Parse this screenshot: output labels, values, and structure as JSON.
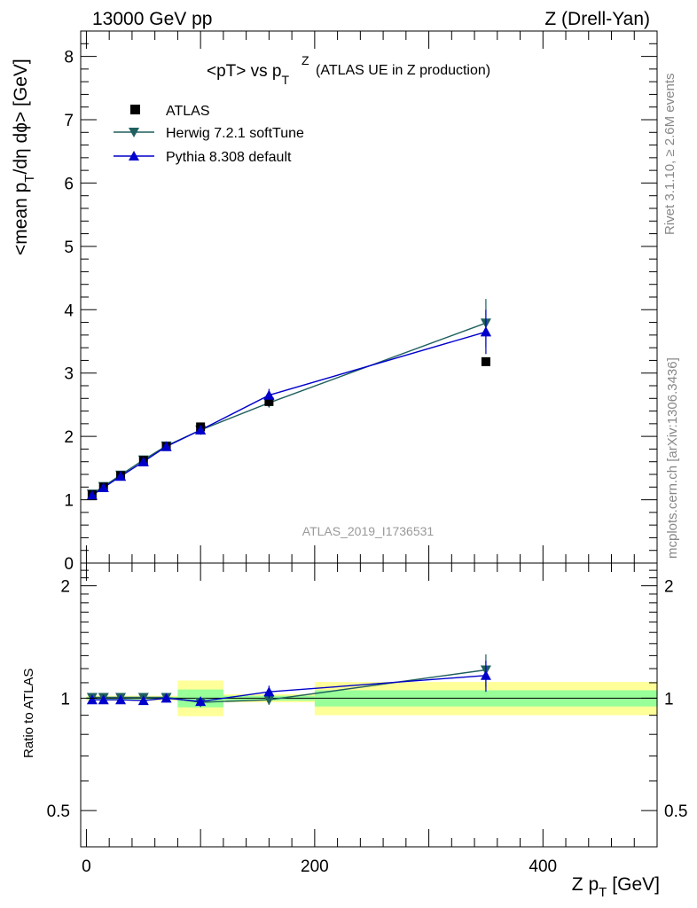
{
  "header": {
    "left": "13000 GeV pp",
    "right": "Z (Drell-Yan)"
  },
  "side_labels": {
    "rivet": "Rivet 3.1.10, ≥ 2.6M events",
    "mcplots": "mcplots.cern.ch [arXiv:1306.3436]"
  },
  "watermark": "ATLAS_2019_I1736531",
  "colors": {
    "atlas": "#000000",
    "herwig": "#1f5f5f",
    "pythia": "#0000cc",
    "band_inner": "#99ff99",
    "band_outer": "#ffff99"
  },
  "chart_data": [
    {
      "type": "scatter",
      "title_main": "<pT> vs p",
      "title_sup": "Z",
      "title_sub": "T",
      "title_suffix": "(ATLAS UE in Z production)",
      "ylabel_main": "<mean p",
      "ylabel_sub": "T",
      "ylabel_rest": "/dη dϕ> [GeV]",
      "xlim": [
        -5,
        500
      ],
      "ylim": [
        0,
        8.4
      ],
      "yticks": [
        1,
        2,
        3,
        4,
        5,
        6,
        7,
        8
      ],
      "ytick_labels": [
        "1",
        "2",
        "3",
        "4",
        "5",
        "6",
        "7",
        "8"
      ],
      "ytick_zero_label": "0",
      "legend_position": "top-left",
      "series": [
        {
          "name": "ATLAS",
          "marker": "square",
          "x": [
            5,
            15,
            30,
            50,
            70,
            100,
            160,
            350
          ],
          "y": [
            1.08,
            1.2,
            1.38,
            1.62,
            1.84,
            2.15,
            2.55,
            3.18
          ]
        },
        {
          "name": "Herwig 7.2.1 softTune",
          "marker": "triangle-down",
          "x": [
            5,
            15,
            30,
            50,
            70,
            100,
            160,
            350
          ],
          "y": [
            1.09,
            1.21,
            1.39,
            1.63,
            1.85,
            2.1,
            2.53,
            3.79
          ],
          "yerr": [
            0.01,
            0.01,
            0.01,
            0.02,
            0.02,
            0.03,
            0.07,
            0.38
          ]
        },
        {
          "name": "Pythia 8.308 default",
          "marker": "triangle-up",
          "x": [
            5,
            15,
            30,
            50,
            70,
            100,
            160,
            350
          ],
          "y": [
            1.07,
            1.19,
            1.37,
            1.6,
            1.84,
            2.1,
            2.65,
            3.65
          ],
          "yerr": [
            0.01,
            0.01,
            0.01,
            0.02,
            0.02,
            0.03,
            0.1,
            0.35
          ]
        }
      ]
    },
    {
      "type": "scatter",
      "ylabel": "Ratio to ATLAS",
      "xlabel_main": "Z p",
      "xlabel_sub": "T",
      "xlabel_rest": "[GeV]",
      "xlim": [
        -5,
        500
      ],
      "ylim": [
        0.4,
        2.3
      ],
      "yscale": "log",
      "yticks": [
        0.5,
        1,
        2
      ],
      "ytick_labels": [
        "0.5",
        "1",
        "2"
      ],
      "xticks": [
        0,
        200,
        400
      ],
      "xtick_labels": [
        "0",
        "200",
        "400"
      ],
      "bands": [
        {
          "x0": 0,
          "x1": 80,
          "inner": [
            0.992,
            1.008
          ],
          "outer": [
            0.985,
            1.015
          ]
        },
        {
          "x0": 80,
          "x1": 120,
          "inner": [
            0.945,
            1.055
          ],
          "outer": [
            0.895,
            1.115
          ]
        },
        {
          "x0": 120,
          "x1": 200,
          "inner": [
            0.985,
            1.015
          ],
          "outer": [
            0.975,
            1.025
          ]
        },
        {
          "x0": 200,
          "x1": 500,
          "inner": [
            0.95,
            1.05
          ],
          "outer": [
            0.9,
            1.105
          ]
        }
      ],
      "series": [
        {
          "name": "Herwig 7.2.1 softTune",
          "marker": "triangle-down",
          "x": [
            5,
            15,
            30,
            50,
            70,
            100,
            160,
            350
          ],
          "y": [
            1.005,
            1.005,
            1.005,
            1.005,
            1.005,
            0.975,
            0.99,
            1.19
          ],
          "yerr": [
            0.005,
            0.005,
            0.005,
            0.01,
            0.01,
            0.015,
            0.03,
            0.12
          ]
        },
        {
          "name": "Pythia 8.308 default",
          "marker": "triangle-up",
          "x": [
            5,
            15,
            30,
            50,
            70,
            100,
            160,
            350
          ],
          "y": [
            0.99,
            0.99,
            0.99,
            0.985,
            1.0,
            0.98,
            1.04,
            1.15
          ],
          "yerr": [
            0.005,
            0.005,
            0.005,
            0.01,
            0.01,
            0.015,
            0.04,
            0.11
          ]
        }
      ]
    }
  ]
}
